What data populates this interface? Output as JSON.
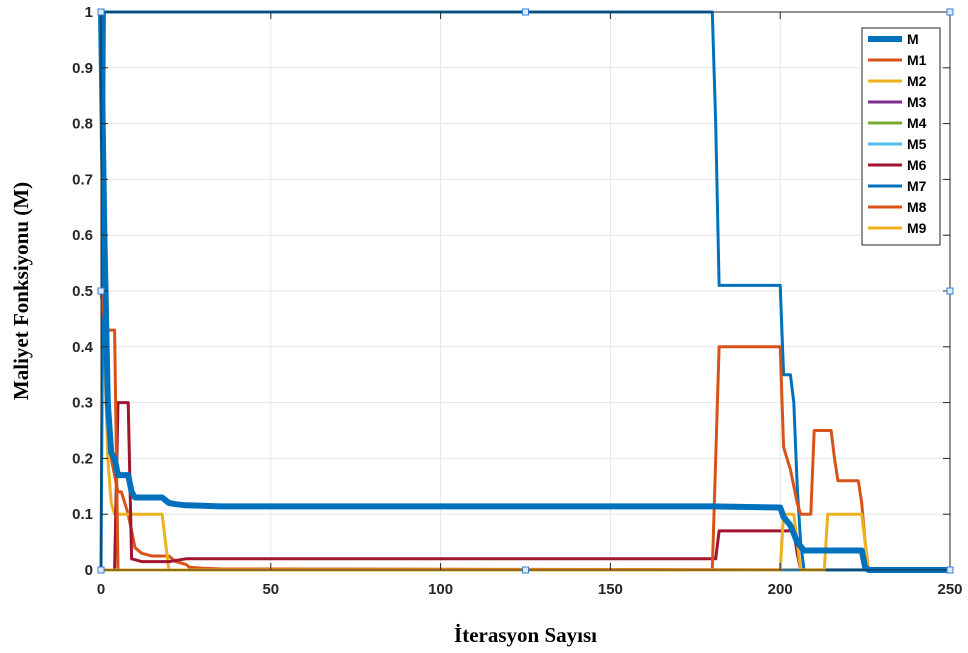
{
  "chart_data": {
    "type": "line",
    "xlabel": "İterasyon Sayısı",
    "ylabel": "Maliyet Fonksiyonu (M)",
    "xlim": [
      0,
      250
    ],
    "ylim": [
      0,
      1
    ],
    "xticks": [
      0,
      50,
      100,
      150,
      200,
      250
    ],
    "yticks": [
      0,
      0.1,
      0.2,
      0.3,
      0.4,
      0.5,
      0.6,
      0.7,
      0.8,
      0.9,
      1
    ],
    "grid": true,
    "legend_position": "top-right",
    "series": [
      {
        "name": "M",
        "color": "#0072BD",
        "emphasis": true,
        "x": [
          0,
          1,
          2,
          3,
          4,
          5,
          6,
          8,
          9,
          10,
          18,
          20,
          22,
          25,
          30,
          35,
          60,
          150,
          180,
          200,
          201,
          203,
          205,
          207,
          210,
          224,
          225,
          226,
          250
        ],
        "y": [
          1,
          0.6,
          0.3,
          0.21,
          0.2,
          0.17,
          0.17,
          0.17,
          0.14,
          0.13,
          0.13,
          0.12,
          0.118,
          0.116,
          0.115,
          0.114,
          0.114,
          0.114,
          0.114,
          0.112,
          0.095,
          0.08,
          0.05,
          0.035,
          0.035,
          0.035,
          0.005,
          0,
          0
        ]
      },
      {
        "name": "M1",
        "color": "#D95319",
        "x": [
          0,
          1,
          2,
          3,
          5,
          6,
          8,
          10,
          12,
          15,
          20,
          22,
          25,
          26,
          30,
          35,
          250
        ],
        "y": [
          0.5,
          0.45,
          0.3,
          0.2,
          0.14,
          0.14,
          0.1,
          0.04,
          0.03,
          0.025,
          0.025,
          0.015,
          0.01,
          0.005,
          0.003,
          0.002,
          0
        ]
      },
      {
        "name": "M2",
        "color": "#EDB120",
        "x": [
          0,
          1,
          2,
          3,
          4,
          5,
          6,
          18,
          19,
          20,
          250
        ],
        "y": [
          1,
          0.4,
          0.2,
          0.12,
          0.1,
          0.1,
          0.1,
          0.1,
          0.05,
          0,
          0
        ]
      },
      {
        "name": "M3",
        "color": "#7E2F8E",
        "x": [
          0,
          250
        ],
        "y": [
          0,
          0
        ]
      },
      {
        "name": "M4",
        "color": "#77AC30",
        "x": [
          0,
          250
        ],
        "y": [
          0,
          0
        ]
      },
      {
        "name": "M5",
        "color": "#4DBEEE",
        "x": [
          0,
          250
        ],
        "y": [
          0,
          0
        ]
      },
      {
        "name": "M6",
        "color": "#A2142F",
        "x": [
          0,
          4,
          5,
          6,
          7,
          8,
          9,
          12,
          20,
          25,
          35,
          150,
          181,
          182,
          183,
          200,
          204,
          205,
          206,
          207,
          250
        ],
        "y": [
          0,
          0,
          0.3,
          0.3,
          0.3,
          0.3,
          0.02,
          0.015,
          0.015,
          0.02,
          0.02,
          0.02,
          0.02,
          0.07,
          0.07,
          0.07,
          0.07,
          0.03,
          0,
          0,
          0
        ]
      },
      {
        "name": "M7",
        "color": "#0072BD",
        "x": [
          0,
          1,
          2,
          180,
          181,
          182,
          200,
          201,
          203,
          204,
          205,
          206,
          207,
          250
        ],
        "y": [
          0,
          1,
          1,
          1,
          0.8,
          0.51,
          0.51,
          0.35,
          0.35,
          0.3,
          0.15,
          0.05,
          0,
          0
        ]
      },
      {
        "name": "M8",
        "color": "#D95319",
        "x": [
          0,
          1,
          2,
          3,
          4,
          5,
          150,
          180,
          181,
          182,
          200,
          201,
          202,
          203,
          205,
          206,
          209,
          210,
          215,
          216,
          217,
          218,
          220,
          221,
          222,
          223,
          224,
          225,
          226,
          250
        ],
        "y": [
          0.5,
          0.45,
          0.43,
          0.43,
          0.43,
          0,
          0,
          0,
          0.2,
          0.4,
          0.4,
          0.22,
          0.2,
          0.18,
          0.12,
          0.1,
          0.1,
          0.25,
          0.25,
          0.2,
          0.16,
          0.16,
          0.16,
          0.16,
          0.16,
          0.16,
          0.12,
          0.05,
          0,
          0
        ]
      },
      {
        "name": "M9",
        "color": "#EDB120",
        "x": [
          0,
          200,
          201,
          202,
          204,
          205,
          206,
          212,
          213,
          214,
          215,
          224,
          225,
          226,
          250
        ],
        "y": [
          0,
          0,
          0.1,
          0.1,
          0.1,
          0.05,
          0,
          0,
          0,
          0.1,
          0.1,
          0.1,
          0.05,
          0,
          0
        ]
      }
    ]
  }
}
